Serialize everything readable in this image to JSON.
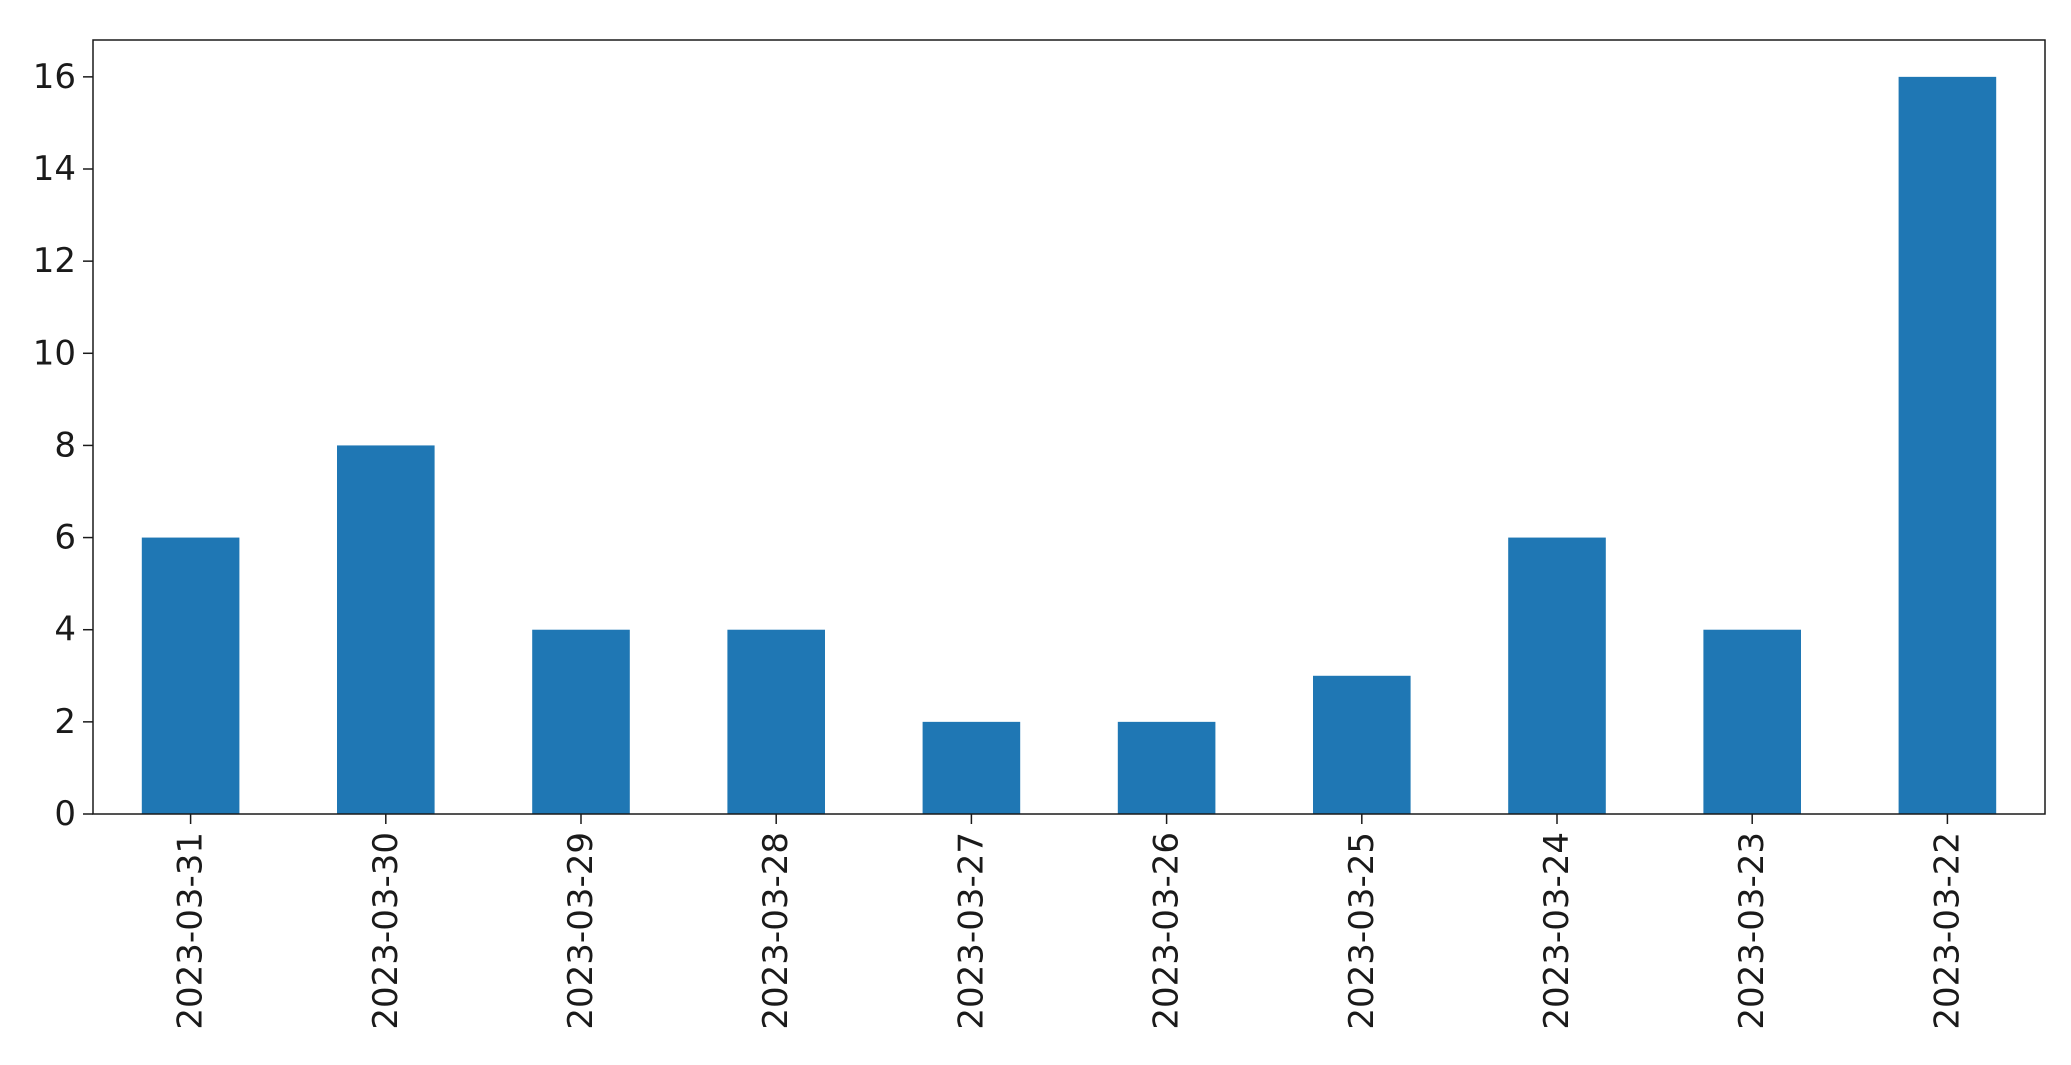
{
  "chart_data": {
    "type": "bar",
    "title": "",
    "xlabel": "",
    "ylabel": "",
    "categories": [
      "2023-03-31",
      "2023-03-30",
      "2023-03-29",
      "2023-03-28",
      "2023-03-27",
      "2023-03-26",
      "2023-03-25",
      "2023-03-24",
      "2023-03-23",
      "2023-03-22"
    ],
    "values": [
      6,
      8,
      4,
      4,
      2,
      2,
      3,
      6,
      4,
      16
    ],
    "ylim": [
      0,
      16.8
    ],
    "yticks": [
      0,
      2,
      4,
      6,
      8,
      10,
      12,
      14,
      16
    ],
    "bar_color": "#1f77b4",
    "grid": false,
    "legend": "none"
  }
}
